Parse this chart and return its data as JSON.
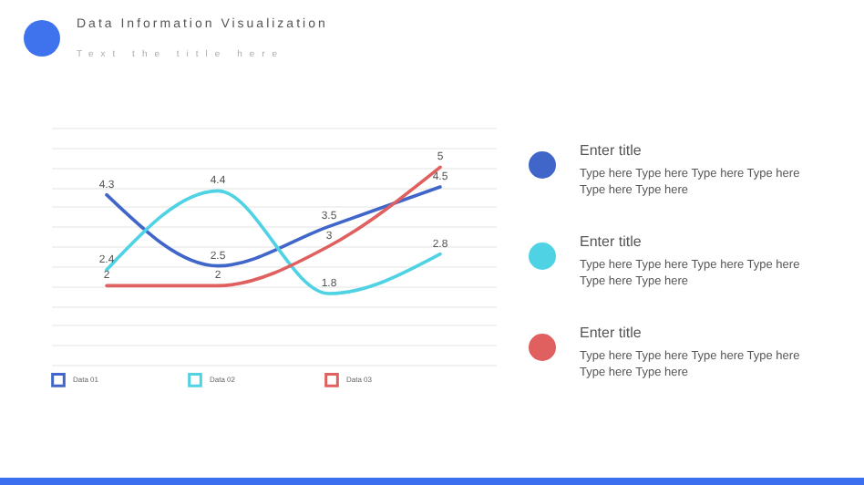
{
  "chart_data": [
    {
      "type": "line",
      "title": "Data Information Visualization",
      "subtitle": "Text the title here",
      "categories": [
        null,
        null,
        null,
        null
      ],
      "series": [
        {
          "name": "Data 01",
          "color": "#3f66c8",
          "values": [
            4.3,
            2.5,
            3.5,
            4.5
          ]
        },
        {
          "name": "Data 02",
          "color": "#4fd2e4",
          "values": [
            2.4,
            4.4,
            1.8,
            2.8
          ]
        },
        {
          "name": "Data 03",
          "color": "#e05f5f",
          "values": [
            2,
            2,
            3,
            5
          ]
        }
      ],
      "ylim": [
        0,
        6
      ],
      "tick_labels": false,
      "grid": "y",
      "legend": "bottom",
      "data_labels": true,
      "marker": "none",
      "line_style": "solid"
    },
    {
      "type": "other",
      "annotations": [
        "Enter title",
        "Type here Type here Type here Type here Type here Type here",
        "Enter title",
        "Type here Type here Type here Type here Type here Type here",
        "Enter title",
        "Type here Type here Type here Type here Type here Type here"
      ]
    }
  ]
}
